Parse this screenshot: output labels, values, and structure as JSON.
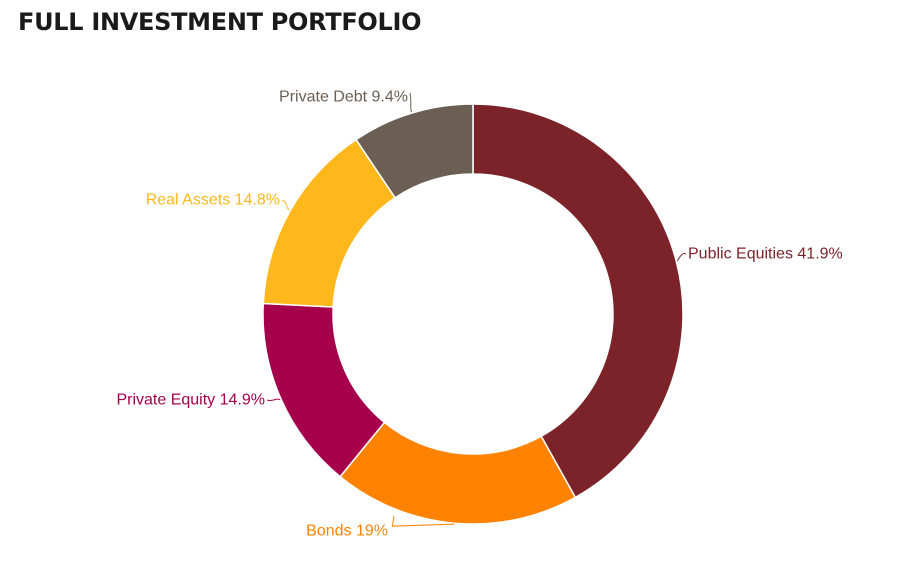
{
  "chart_data": {
    "type": "pie",
    "variant": "donut",
    "title": "FULL INVESTMENT PORTFOLIO",
    "legend": "none",
    "slices": [
      {
        "label": "Public Equities 41.9%",
        "value": 41.9,
        "color": "#7b2329"
      },
      {
        "label": "Bonds 19%",
        "value": 19,
        "color": "#ff8200"
      },
      {
        "label": "Private Equity 14.9%",
        "value": 14.9,
        "color": "#a6004c"
      },
      {
        "label": "Real Assets 14.8%",
        "value": 14.8,
        "color": "#ffb81c"
      },
      {
        "label": "Private Debt 9.4%",
        "value": 9.4,
        "color": "#6b5e53"
      }
    ]
  }
}
